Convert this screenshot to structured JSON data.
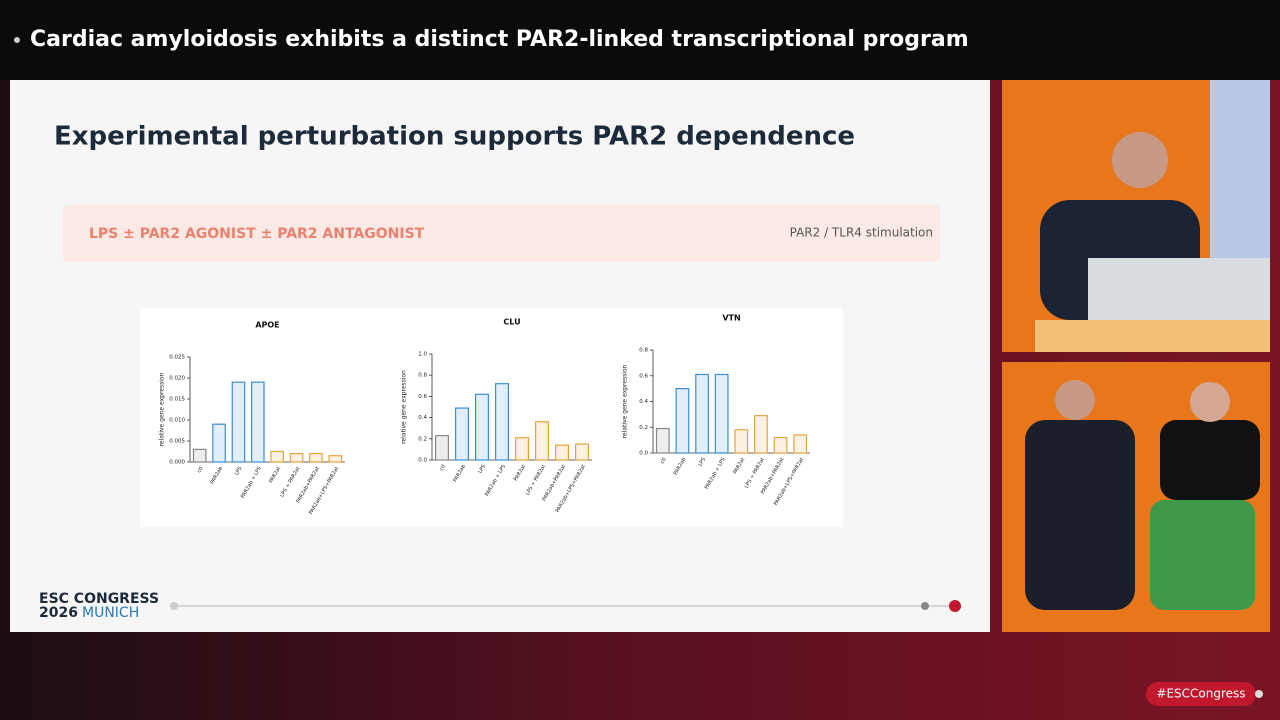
{
  "header": {
    "title": "Cardiac amyloidosis exhibits a distinct PAR2-linked transcriptional program"
  },
  "slide": {
    "heading": "Experimental perturbation supports PAR2 dependence",
    "banner": "LPS ± PAR2 AGONIST ± PAR2 ANTAGONIST",
    "banner_note": "PAR2 / TLR4 stimulation",
    "logo_line1": "ESC CONGRESS",
    "logo_year": "2026",
    "logo_city": "MUNICH"
  },
  "footer": {
    "hashtag": "#ESCCongress"
  },
  "chart_data": [
    {
      "type": "bar",
      "title": "APOE",
      "y_label": "relative gene expression",
      "categories": [
        "ctl",
        "PAR2ab",
        "LPS",
        "PAR2ab + LPS",
        "PAR2at",
        "LPS + PAR2at",
        "PAR2ab+PAR2at",
        "PAR2ab+LPS+PAR2at"
      ],
      "values": [
        0.003,
        0.009,
        0.019,
        0.019,
        0.0025,
        0.002,
        0.002,
        0.0015
      ],
      "colors": [
        "#888888",
        "#3a8fd6",
        "#3a8fd6",
        "#3a8fd6",
        "#e8a33c",
        "#e8a33c",
        "#e8a33c",
        "#e8a33c"
      ],
      "ylim": [
        0,
        0.025
      ],
      "yticks": [
        {
          "value": 0,
          "label": "0.000"
        },
        {
          "value": 0.005,
          "label": "0.005"
        },
        {
          "value": 0.01,
          "label": "0.010"
        },
        {
          "value": 0.015,
          "label": "0.015"
        },
        {
          "value": 0.02,
          "label": "0.020"
        },
        {
          "value": 0.025,
          "label": "0.025"
        }
      ]
    },
    {
      "type": "bar",
      "title": "CLU",
      "y_label": "relative gene expression",
      "categories": [
        "ctl",
        "PAR2ab",
        "LPS",
        "PAR2ab + LPS",
        "PAR2at",
        "LPS + PAR2at",
        "PAR2ab+PAR2at",
        "PAR2ab+LPS+PAR2at"
      ],
      "values": [
        0.23,
        0.49,
        0.62,
        0.72,
        0.21,
        0.36,
        0.14,
        0.15
      ],
      "colors": [
        "#888888",
        "#3a8fd6",
        "#3a8fd6",
        "#3a8fd6",
        "#e8a33c",
        "#e8a33c",
        "#e8a33c",
        "#e8a33c"
      ],
      "ylim": [
        0,
        1
      ],
      "yticks": [
        {
          "value": 0,
          "label": "0.0"
        },
        {
          "value": 0.2,
          "label": "0.2"
        },
        {
          "value": 0.4,
          "label": "0.4"
        },
        {
          "value": 0.6,
          "label": "0.6"
        },
        {
          "value": 0.8,
          "label": "0.8"
        },
        {
          "value": 1,
          "label": "1.0"
        }
      ]
    },
    {
      "type": "bar",
      "title": "VTN",
      "y_label": "relative gene expression",
      "categories": [
        "ctl",
        "PAR2ab",
        "LPS",
        "PAR2ab + LPS",
        "PAR2at",
        "LPS + PAR2at",
        "PAR2ab+PAR2at",
        "PAR2ab+LPS+PAR2at"
      ],
      "values": [
        0.19,
        0.5,
        0.61,
        0.61,
        0.18,
        0.29,
        0.12,
        0.14
      ],
      "colors": [
        "#888888",
        "#3a8fd6",
        "#3a8fd6",
        "#3a8fd6",
        "#e8a33c",
        "#e8a33c",
        "#e8a33c",
        "#e8a33c"
      ],
      "ylim": [
        0,
        0.8
      ],
      "yticks": [
        {
          "value": 0,
          "label": "0.0"
        },
        {
          "value": 0.2,
          "label": "0.2"
        },
        {
          "value": 0.4,
          "label": "0.4"
        },
        {
          "value": 0.6,
          "label": "0.6"
        },
        {
          "value": 0.8,
          "label": "0.8"
        }
      ]
    }
  ]
}
